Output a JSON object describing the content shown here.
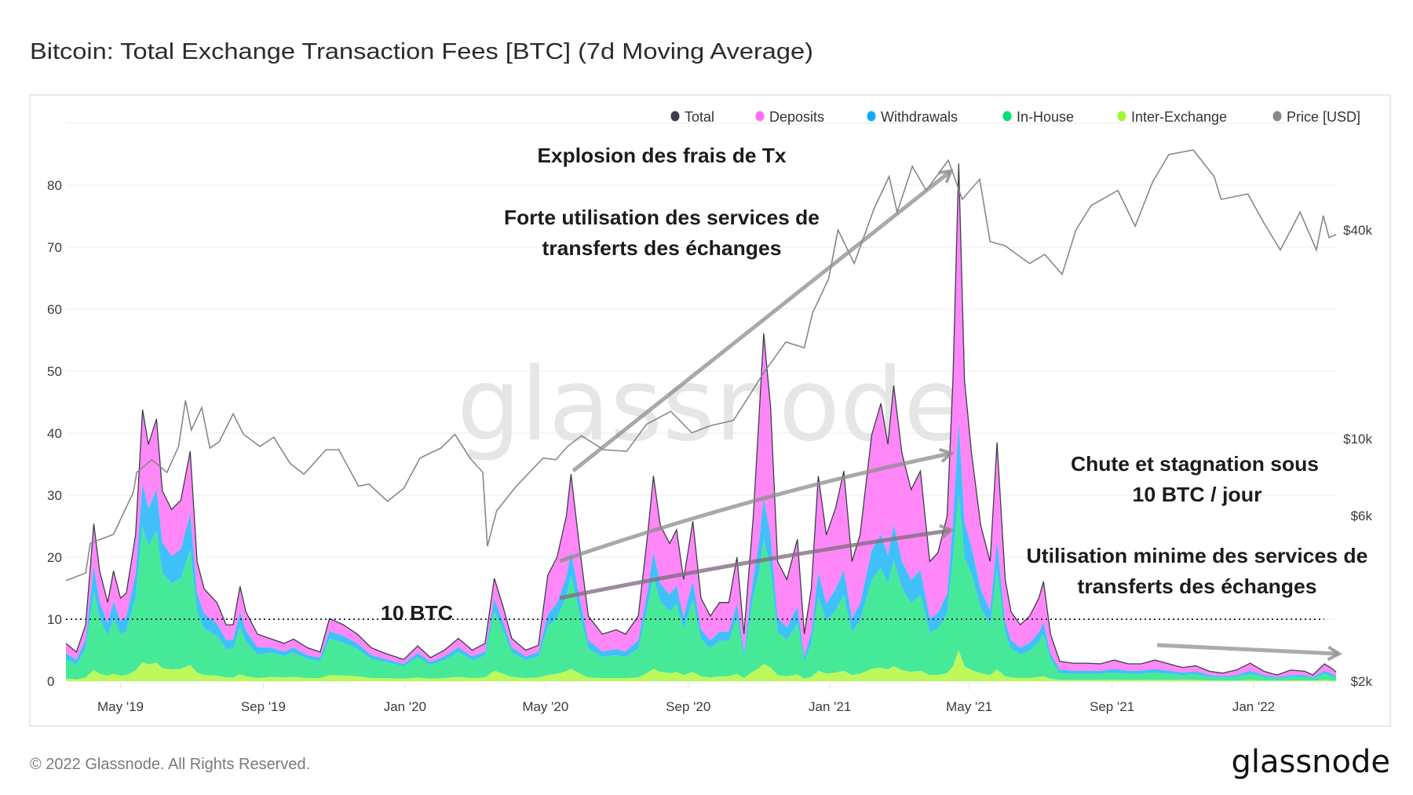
{
  "title": "Bitcoin: Total Exchange Transaction Fees [BTC] (7d Moving Average)",
  "footer": "© 2022 Glassnode. All Rights Reserved.",
  "logo": "glassnode",
  "watermark": "glassnode",
  "colors": {
    "total": "#3b3f4a",
    "deposits": "#ff87f8",
    "deposits_dot": "#ff6bf5",
    "withdrawals": "#40c0f8",
    "withdrawals_dot": "#14a9ff",
    "in_house": "#46e998",
    "in_house_dot": "#00e07a",
    "inter_exchange": "#bdf95d",
    "inter_exchange_dot": "#a6f53a",
    "price": "#888888"
  },
  "legend": [
    {
      "label": "Total",
      "color": "#3b3f4a"
    },
    {
      "label": "Deposits",
      "color": "#ff6bf5"
    },
    {
      "label": "Withdrawals",
      "color": "#14a9ff"
    },
    {
      "label": "In-House",
      "color": "#00e07a"
    },
    {
      "label": "Inter-Exchange",
      "color": "#a6f53a"
    },
    {
      "label": "Price [USD]",
      "color": "#888888"
    }
  ],
  "annotations": {
    "explosion": "Explosion des frais de Tx",
    "forte_1": "Forte utilisation des services de",
    "forte_2": "transferts des échanges",
    "ten_btc": "10 BTC",
    "chute_1": "Chute et stagnation sous",
    "chute_2": "10 BTC / jour",
    "minime_1": "Utilisation minime des services de",
    "minime_2": "transferts des échanges"
  },
  "chart_data": {
    "type": "area",
    "stacked": true,
    "title": "Bitcoin: Total Exchange Transaction Fees [BTC] (7d Moving Average)",
    "xlabel": "",
    "ylabel": "",
    "ylim": [
      0,
      90
    ],
    "y_ticks": [
      0,
      10,
      20,
      30,
      40,
      50,
      60,
      70,
      80
    ],
    "grid": true,
    "legend_position": "top-right",
    "reference_line": {
      "value": 10,
      "label": "10 BTC",
      "style": "dotted"
    },
    "x_range": [
      "2019-03-15",
      "2022-03-13"
    ],
    "x_ticks": [
      {
        "label": "May '19",
        "date": "2019-05-01"
      },
      {
        "label": "Sep '19",
        "date": "2019-09-01"
      },
      {
        "label": "Jan '20",
        "date": "2020-01-01"
      },
      {
        "label": "May '20",
        "date": "2020-05-01"
      },
      {
        "label": "Sep '20",
        "date": "2020-09-01"
      },
      {
        "label": "Jan '21",
        "date": "2021-01-01"
      },
      {
        "label": "May '21",
        "date": "2021-05-01"
      },
      {
        "label": "Sep '21",
        "date": "2021-09-01"
      },
      {
        "label": "Jan '22",
        "date": "2022-01-01"
      }
    ],
    "dates": [
      "2019-03-15",
      "2019-03-24",
      "2019-04-01",
      "2019-04-08",
      "2019-04-13",
      "2019-04-20",
      "2019-04-25",
      "2019-05-01",
      "2019-05-06",
      "2019-05-14",
      "2019-05-20",
      "2019-05-25",
      "2019-06-01",
      "2019-06-06",
      "2019-06-14",
      "2019-06-22",
      "2019-06-30",
      "2019-07-06",
      "2019-07-12",
      "2019-07-23",
      "2019-07-31",
      "2019-08-06",
      "2019-08-12",
      "2019-08-17",
      "2019-08-27",
      "2019-09-08",
      "2019-09-19",
      "2019-09-27",
      "2019-10-09",
      "2019-10-20",
      "2019-10-28",
      "2019-11-09",
      "2019-11-21",
      "2019-12-03",
      "2019-12-15",
      "2019-12-31",
      "2020-01-12",
      "2020-01-23",
      "2020-02-04",
      "2020-02-16",
      "2020-02-28",
      "2020-03-10",
      "2020-03-18",
      "2020-03-26",
      "2020-04-02",
      "2020-04-14",
      "2020-04-25",
      "2020-05-03",
      "2020-05-11",
      "2020-05-19",
      "2020-05-23",
      "2020-05-30",
      "2020-06-07",
      "2020-06-19",
      "2020-07-01",
      "2020-07-09",
      "2020-07-20",
      "2020-07-28",
      "2020-08-02",
      "2020-08-08",
      "2020-08-16",
      "2020-08-22",
      "2020-08-28",
      "2020-09-05",
      "2020-09-12",
      "2020-09-20",
      "2020-09-28",
      "2020-10-06",
      "2020-10-13",
      "2020-10-19",
      "2020-10-27",
      "2020-11-01",
      "2020-11-05",
      "2020-11-11",
      "2020-11-17",
      "2020-11-25",
      "2020-12-04",
      "2020-12-10",
      "2020-12-16",
      "2020-12-22",
      "2020-12-29",
      "2021-01-06",
      "2021-01-13",
      "2021-01-20",
      "2021-01-27",
      "2021-02-06",
      "2021-02-14",
      "2021-02-20",
      "2021-02-25",
      "2021-03-04",
      "2021-03-12",
      "2021-03-20",
      "2021-03-28",
      "2021-04-04",
      "2021-04-12",
      "2021-04-17",
      "2021-04-22",
      "2021-04-27",
      "2021-05-03",
      "2021-05-11",
      "2021-05-19",
      "2021-05-25",
      "2021-06-01",
      "2021-06-06",
      "2021-06-14",
      "2021-06-22",
      "2021-06-30",
      "2021-07-04",
      "2021-07-10",
      "2021-07-18",
      "2021-07-30",
      "2021-08-11",
      "2021-08-22",
      "2021-09-03",
      "2021-09-15",
      "2021-09-26",
      "2021-10-08",
      "2021-10-20",
      "2021-11-01",
      "2021-11-12",
      "2021-11-24",
      "2021-12-05",
      "2021-12-17",
      "2021-12-29",
      "2022-01-10",
      "2022-01-21",
      "2022-02-02",
      "2022-02-14",
      "2022-02-21",
      "2022-03-03",
      "2022-03-09",
      "2022-03-13"
    ],
    "series": [
      {
        "name": "Inter-Exchange",
        "color": "#bdf95d",
        "values": [
          0.4,
          0.3,
          0.6,
          1.8,
          1.2,
          0.9,
          1.2,
          0.9,
          1.0,
          1.7,
          3.1,
          2.7,
          3.0,
          2.1,
          1.9,
          2.0,
          2.6,
          1.4,
          1.0,
          0.9,
          0.6,
          0.6,
          1.1,
          0.8,
          0.5,
          0.7,
          0.6,
          0.7,
          0.5,
          0.5,
          1.0,
          0.9,
          0.8,
          0.5,
          0.5,
          0.4,
          0.6,
          0.4,
          0.5,
          0.7,
          0.5,
          0.6,
          1.7,
          1.2,
          0.7,
          0.5,
          0.6,
          1.0,
          1.2,
          1.6,
          2.0,
          1.3,
          0.6,
          0.5,
          0.5,
          0.5,
          0.6,
          1.4,
          2.0,
          1.5,
          1.3,
          1.5,
          1.0,
          1.5,
          0.8,
          0.6,
          0.8,
          0.8,
          1.2,
          0.5,
          1.6,
          2.1,
          2.8,
          2.2,
          1.0,
          0.8,
          1.1,
          0.4,
          0.7,
          1.7,
          1.2,
          1.4,
          1.7,
          1.0,
          1.2,
          2.0,
          2.2,
          1.9,
          2.4,
          1.8,
          1.5,
          1.7,
          1.0,
          1.0,
          1.3,
          2.4,
          5.0,
          2.4,
          1.8,
          1.3,
          1.0,
          1.9,
          0.8,
          0.6,
          0.5,
          0.5,
          0.7,
          0.8,
          0.4,
          0.2,
          0.2,
          0.2,
          0.2,
          0.2,
          0.2,
          0.2,
          0.2,
          0.2,
          0.2,
          0.2,
          0.1,
          0.1,
          0.1,
          0.2,
          0.1,
          0.1,
          0.1,
          0.1,
          0.1,
          0.2,
          0.1,
          0.1
        ]
      },
      {
        "name": "In-House",
        "color": "#46e998",
        "values": [
          3.1,
          2.4,
          4.6,
          12.7,
          8.9,
          6.4,
          8.9,
          6.7,
          7.1,
          11.8,
          21.9,
          19.1,
          21.2,
          15.4,
          13.9,
          14.6,
          18.6,
          9.7,
          7.5,
          6.4,
          4.6,
          4.6,
          7.7,
          5.6,
          3.8,
          3.9,
          3.5,
          3.9,
          3.1,
          2.7,
          5.9,
          5.3,
          4.4,
          3.1,
          2.6,
          2.0,
          3.3,
          2.2,
          2.9,
          4.0,
          2.9,
          3.5,
          9.6,
          6.8,
          4.0,
          2.9,
          3.4,
          7.7,
          9.0,
          12.0,
          15.0,
          10.0,
          4.7,
          3.4,
          3.7,
          3.4,
          4.7,
          10.6,
          14.9,
          11.3,
          10.0,
          11.0,
          7.4,
          11.6,
          6.0,
          4.7,
          5.7,
          5.7,
          9.0,
          3.4,
          12.0,
          15.3,
          20.2,
          15.9,
          6.9,
          5.9,
          8.2,
          2.7,
          5.4,
          11.9,
          8.5,
          10.1,
          12.2,
          6.9,
          8.5,
          14.3,
          16.1,
          13.8,
          17.2,
          13.2,
          11.1,
          12.2,
          6.9,
          7.5,
          9.6,
          17.5,
          25.0,
          17.5,
          15.5,
          10.5,
          8.1,
          16.2,
          6.9,
          4.7,
          3.8,
          4.4,
          5.6,
          6.8,
          3.2,
          1.1,
          1.0,
          1.0,
          1.0,
          1.2,
          1.0,
          1.0,
          1.2,
          1.0,
          0.8,
          0.9,
          0.6,
          0.5,
          0.6,
          1.0,
          0.6,
          0.3,
          0.6,
          0.6,
          0.3,
          1.0,
          0.7,
          0.5
        ]
      },
      {
        "name": "Withdrawals",
        "color": "#40c0f8",
        "values": [
          1.0,
          0.8,
          1.5,
          4.1,
          2.8,
          2.0,
          2.8,
          2.1,
          2.3,
          3.8,
          7.0,
          6.1,
          6.8,
          4.9,
          4.4,
          4.7,
          5.9,
          3.1,
          2.4,
          2.0,
          1.5,
          1.5,
          2.4,
          1.8,
          1.2,
          0.8,
          0.7,
          0.8,
          0.6,
          0.6,
          1.2,
          1.1,
          0.9,
          0.6,
          0.5,
          0.4,
          0.7,
          0.5,
          0.6,
          0.8,
          0.6,
          0.7,
          2.0,
          1.4,
          0.8,
          0.6,
          0.7,
          2.1,
          2.4,
          3.2,
          4.0,
          2.7,
          1.3,
          0.9,
          1.0,
          0.9,
          1.3,
          2.8,
          4.0,
          3.0,
          2.7,
          2.9,
          2.0,
          3.1,
          1.6,
          1.3,
          1.5,
          1.5,
          2.4,
          0.9,
          3.2,
          5.1,
          6.7,
          5.3,
          2.3,
          2.0,
          2.7,
          0.9,
          1.8,
          4.0,
          2.8,
          3.4,
          4.1,
          2.3,
          2.8,
          4.8,
          5.4,
          4.6,
          5.7,
          4.4,
          3.7,
          4.1,
          2.3,
          2.5,
          3.2,
          5.8,
          12.0,
          5.8,
          4.4,
          3.0,
          2.3,
          4.6,
          2.0,
          1.3,
          1.1,
          1.3,
          1.6,
          1.9,
          0.9,
          0.6,
          0.5,
          0.5,
          0.5,
          0.6,
          0.5,
          0.5,
          0.6,
          0.5,
          0.4,
          0.5,
          0.3,
          0.2,
          0.3,
          0.5,
          0.3,
          0.2,
          0.3,
          0.3,
          0.2,
          0.5,
          0.4,
          0.3
        ]
      },
      {
        "name": "Deposits",
        "color": "#ff87f8",
        "values": [
          1.6,
          1.2,
          2.4,
          6.8,
          4.9,
          3.4,
          4.9,
          3.7,
          3.8,
          6.3,
          11.8,
          10.3,
          11.3,
          8.3,
          7.5,
          7.9,
          10.0,
          5.1,
          4.0,
          3.4,
          2.4,
          2.4,
          4.1,
          3.0,
          2.1,
          1.4,
          1.3,
          1.4,
          1.2,
          0.9,
          2.0,
          1.8,
          1.5,
          1.2,
          0.9,
          0.7,
          1.1,
          0.7,
          1.0,
          1.4,
          1.0,
          1.3,
          3.3,
          2.3,
          1.4,
          1.0,
          1.1,
          6.3,
          7.4,
          9.8,
          12.4,
          8.2,
          3.9,
          2.8,
          3.1,
          2.8,
          3.9,
          8.8,
          12.2,
          9.3,
          8.2,
          9.0,
          6.0,
          9.6,
          5.0,
          3.9,
          4.7,
          4.7,
          7.4,
          2.8,
          9.8,
          20.1,
          26.4,
          20.7,
          9.1,
          7.7,
          10.9,
          3.6,
          7.0,
          15.5,
          11.1,
          13.1,
          15.9,
          9.1,
          11.1,
          18.6,
          21.1,
          17.9,
          22.4,
          17.4,
          14.6,
          15.9,
          9.1,
          9.7,
          12.5,
          22.8,
          41.5,
          22.8,
          15.1,
          10.3,
          7.9,
          15.8,
          6.7,
          4.6,
          3.7,
          4.3,
          5.5,
          6.6,
          3.1,
          1.3,
          1.2,
          1.2,
          1.1,
          1.4,
          1.1,
          1.1,
          1.4,
          1.1,
          0.8,
          0.9,
          0.6,
          0.5,
          0.8,
          1.2,
          0.6,
          0.4,
          0.8,
          0.6,
          0.4,
          1.1,
          0.9,
          0.6
        ]
      }
    ],
    "price": {
      "name": "Price [USD]",
      "scale": "log",
      "axis": "right",
      "ticks": [
        {
          "label": "$2k",
          "value": 2000
        },
        {
          "label": "$6k",
          "value": 6000
        },
        {
          "label": "$10k",
          "value": 10000
        },
        {
          "label": "$40k",
          "value": 40000
        }
      ],
      "dates": [
        "2019-03-15",
        "2019-04-01",
        "2019-04-05",
        "2019-04-25",
        "2019-05-12",
        "2019-05-15",
        "2019-05-28",
        "2019-06-10",
        "2019-06-20",
        "2019-06-26",
        "2019-07-01",
        "2019-07-10",
        "2019-07-17",
        "2019-07-25",
        "2019-08-06",
        "2019-08-15",
        "2019-08-29",
        "2019-09-10",
        "2019-09-24",
        "2019-10-06",
        "2019-10-25",
        "2019-11-05",
        "2019-11-22",
        "2019-12-01",
        "2019-12-17",
        "2019-12-31",
        "2020-01-14",
        "2020-02-01",
        "2020-02-13",
        "2020-02-26",
        "2020-03-08",
        "2020-03-12",
        "2020-03-20",
        "2020-04-06",
        "2020-04-29",
        "2020-05-10",
        "2020-05-20",
        "2020-06-01",
        "2020-06-20",
        "2020-07-10",
        "2020-07-27",
        "2020-08-17",
        "2020-09-04",
        "2020-09-20",
        "2020-10-10",
        "2020-10-21",
        "2020-11-05",
        "2020-11-24",
        "2020-12-10",
        "2020-12-17",
        "2020-12-31",
        "2021-01-08",
        "2021-01-22",
        "2021-02-08",
        "2021-02-21",
        "2021-02-28",
        "2021-03-13",
        "2021-03-25",
        "2021-04-13",
        "2021-04-25",
        "2021-05-10",
        "2021-05-19",
        "2021-06-01",
        "2021-06-22",
        "2021-07-05",
        "2021-07-20",
        "2021-08-01",
        "2021-08-14",
        "2021-09-06",
        "2021-09-21",
        "2021-10-06",
        "2021-10-20",
        "2021-11-10",
        "2021-11-28",
        "2021-12-04",
        "2021-12-27",
        "2022-01-10",
        "2022-01-24",
        "2022-02-10",
        "2022-02-24",
        "2022-03-02",
        "2022-03-07",
        "2022-03-13"
      ],
      "values": [
        3900,
        4100,
        5000,
        5300,
        7000,
        8000,
        8700,
        8000,
        9500,
        12900,
        10600,
        12300,
        9400,
        9800,
        11800,
        10300,
        9500,
        10100,
        8500,
        7900,
        9300,
        9300,
        7300,
        7400,
        6600,
        7200,
        8800,
        9400,
        10300,
        8800,
        8000,
        4900,
        6200,
        7300,
        8800,
        8700,
        9500,
        10200,
        9300,
        9200,
        11000,
        12000,
        10400,
        10900,
        11300,
        12900,
        15500,
        19000,
        18300,
        23000,
        29000,
        40000,
        32000,
        46000,
        57000,
        45000,
        61000,
        52000,
        63500,
        49000,
        56000,
        37000,
        36000,
        32000,
        34000,
        29800,
        40000,
        47000,
        52000,
        41000,
        55000,
        66000,
        68000,
        57000,
        49000,
        50800,
        41800,
        35000,
        45000,
        35000,
        44000,
        38000,
        38800
      ]
    }
  }
}
